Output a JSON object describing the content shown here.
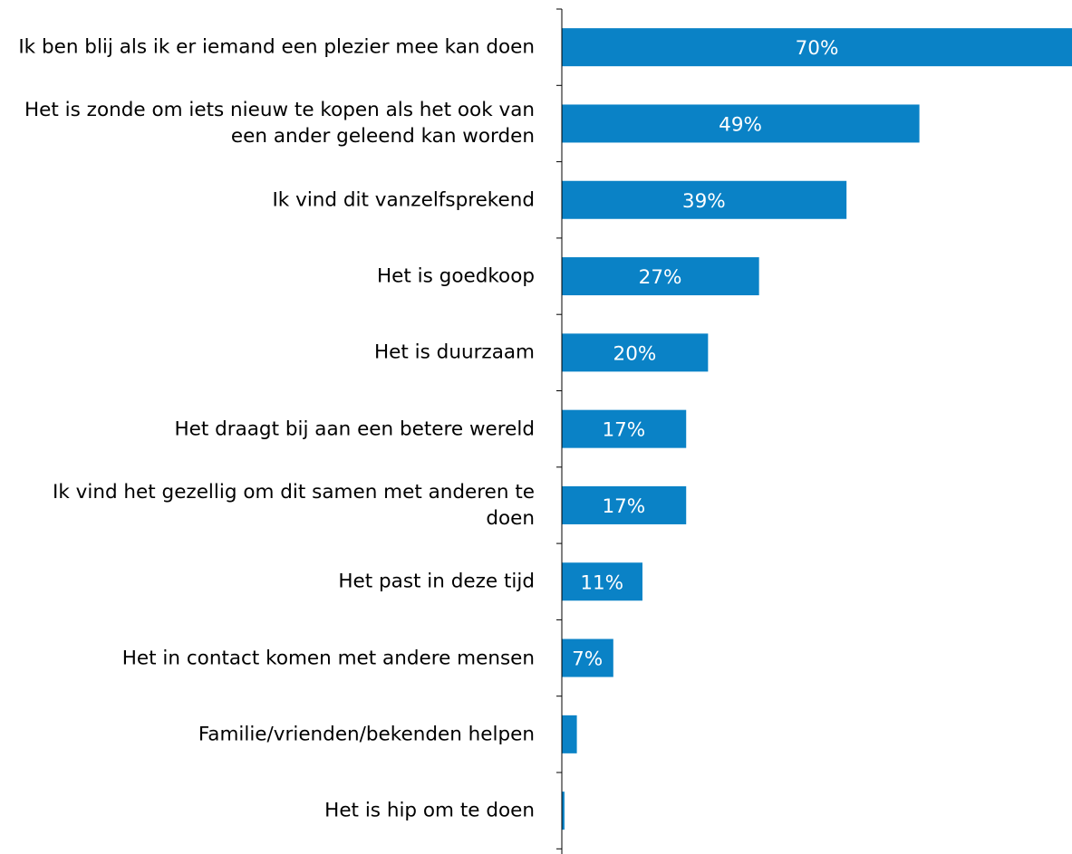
{
  "chart_data": {
    "type": "bar",
    "orientation": "horizontal",
    "categories": [
      "Ik ben blij als ik er iemand een plezier mee kan doen",
      "Het is zonde om iets nieuw te kopen als het ook van een ander geleend kan worden",
      "Ik vind dit vanzelfsprekend",
      "Het is goedkoop",
      "Het is duurzaam",
      "Het draagt bij aan een betere wereld",
      "Ik vind het gezellig om dit samen met anderen te doen",
      "Het past in deze tijd",
      "Het in contact komen met andere mensen",
      "Familie/vrienden/bekenden helpen",
      "Het is hip om te doen"
    ],
    "values": [
      70,
      49,
      39,
      27,
      20,
      17,
      17,
      11,
      7,
      2,
      0.3
    ],
    "data_labels": [
      "70%",
      "49%",
      "39%",
      "27%",
      "20%",
      "17%",
      "17%",
      "11%",
      "7%",
      "",
      ""
    ],
    "xlim": [
      0,
      70
    ],
    "bar_color": "#0A82C6",
    "data_label_color": "#ffffff",
    "axis_color": "#000000",
    "grid": false,
    "legend": "none"
  }
}
